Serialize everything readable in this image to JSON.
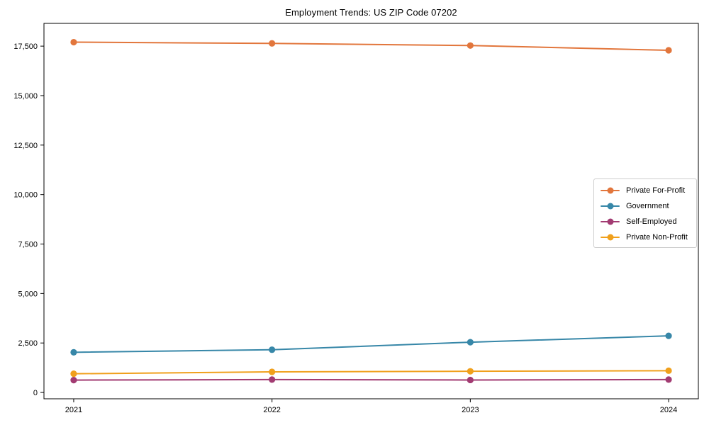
{
  "chart_data": {
    "type": "line",
    "title": "Employment Trends: US ZIP Code 07202",
    "xlabel": "",
    "ylabel": "",
    "categories": [
      "2021",
      "2022",
      "2023",
      "2024"
    ],
    "x": [
      2021,
      2022,
      2023,
      2024
    ],
    "series": [
      {
        "name": "Private For-Profit",
        "color": "#E2763C",
        "values": [
          17700,
          17640,
          17530,
          17290
        ]
      },
      {
        "name": "Government",
        "color": "#3787A8",
        "values": [
          2030,
          2160,
          2540,
          2860
        ]
      },
      {
        "name": "Self-Employed",
        "color": "#A23B72",
        "values": [
          625,
          650,
          630,
          650
        ]
      },
      {
        "name": "Private Non-Profit",
        "color": "#F0A01C",
        "values": [
          945,
          1040,
          1070,
          1100
        ]
      }
    ],
    "yticks": [
      0,
      2500,
      5000,
      7500,
      10000,
      12500,
      15000,
      17500
    ],
    "ytick_labels": [
      "0",
      "2,500",
      "5,000",
      "7,500",
      "10,000",
      "12,500",
      "15,000",
      "17,500"
    ],
    "ylim": [
      -320,
      18650
    ],
    "x_margin_frac": 0.05,
    "grid": false,
    "legend_position": "center-right",
    "frame": "box",
    "marker": "circle",
    "axis_color": "#000000"
  }
}
